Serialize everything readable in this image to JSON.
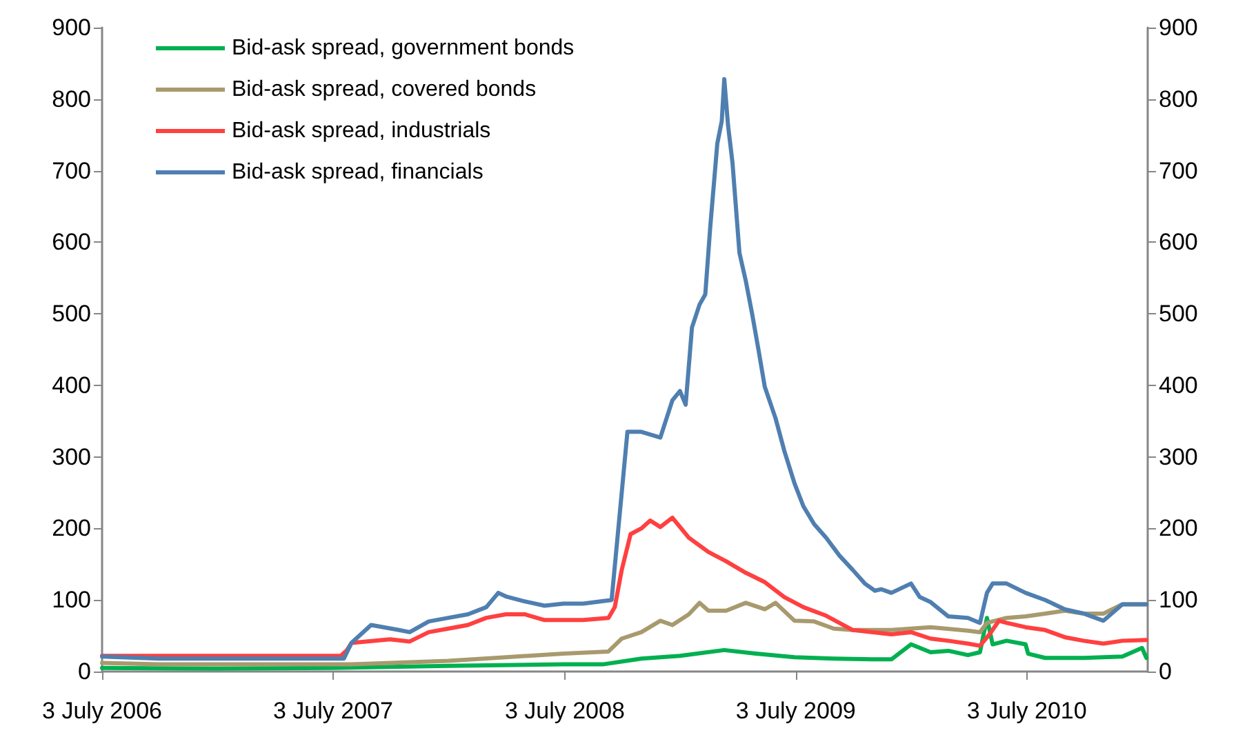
{
  "chart_data": {
    "type": "line",
    "xlim": [
      "2006-07-03",
      "2011-01-10"
    ],
    "xticks": [
      {
        "value": "2006-07-03",
        "label": "3 July 2006"
      },
      {
        "value": "2007-07-03",
        "label": "3 July 2007"
      },
      {
        "value": "2008-07-03",
        "label": "3 July 2008"
      },
      {
        "value": "2009-07-03",
        "label": "3 July 2009"
      },
      {
        "value": "2010-07-03",
        "label": "3 July 2010"
      }
    ],
    "ylim": [
      0,
      900
    ],
    "yticks": [
      0,
      100,
      200,
      300,
      400,
      500,
      600,
      700,
      800,
      900
    ],
    "y2lim": [
      0,
      900
    ],
    "y2ticks": [
      0,
      100,
      200,
      300,
      400,
      500,
      600,
      700,
      800,
      900
    ],
    "grid": false,
    "legend": "top left",
    "marker": "none",
    "line_style": "solid",
    "series": [
      {
        "name": "Bid-ask spread, government bonds",
        "color": "#00b050",
        "x": [
          "2006-07-03",
          "2007-01-01",
          "2007-07-01",
          "2008-01-01",
          "2008-07-01",
          "2008-09-01",
          "2008-11-01",
          "2009-01-01",
          "2009-03-12",
          "2009-05-01",
          "2009-07-01",
          "2009-09-01",
          "2009-11-01",
          "2009-12-01",
          "2010-01-01",
          "2010-02-01",
          "2010-03-01",
          "2010-04-01",
          "2010-04-20",
          "2010-05-01",
          "2010-05-10",
          "2010-06-01",
          "2010-07-01",
          "2010-07-05",
          "2010-08-01",
          "2010-10-01",
          "2010-12-01",
          "2011-01-01",
          "2011-01-08"
        ],
        "values": [
          5,
          4,
          5,
          8,
          10,
          10,
          18,
          22,
          30,
          25,
          20,
          18,
          17,
          17,
          38,
          27,
          29,
          23,
          27,
          75,
          38,
          43,
          38,
          25,
          19,
          19,
          21,
          33,
          19
        ]
      },
      {
        "name": "Bid-ask spread, covered bonds",
        "color": "#a89a6e",
        "x": [
          "2006-07-03",
          "2006-10-01",
          "2007-08-01",
          "2008-01-01",
          "2008-04-01",
          "2008-07-01",
          "2008-09-10",
          "2008-10-01",
          "2008-11-01",
          "2008-12-01",
          "2008-12-20",
          "2009-01-15",
          "2009-02-01",
          "2009-02-15",
          "2009-03-15",
          "2009-04-15",
          "2009-05-15",
          "2009-06-01",
          "2009-07-01",
          "2009-08-01",
          "2009-09-01",
          "2009-10-01",
          "2009-12-01",
          "2010-02-01",
          "2010-04-01",
          "2010-04-20",
          "2010-05-01",
          "2010-06-01",
          "2010-07-01",
          "2010-08-01",
          "2010-09-01",
          "2010-10-01",
          "2010-11-01",
          "2010-12-01",
          "2011-01-08"
        ],
        "values": [
          12,
          10,
          10,
          15,
          20,
          25,
          28,
          46,
          55,
          71,
          65,
          80,
          96,
          85,
          85,
          96,
          87,
          96,
          71,
          70,
          60,
          58,
          58,
          62,
          57,
          55,
          68,
          75,
          77,
          81,
          85,
          81,
          81,
          94,
          94
        ]
      },
      {
        "name": "Bid-ask spread, industrials",
        "color": "#ff4040",
        "x": [
          "2006-07-03",
          "2007-07-15",
          "2007-07-25",
          "2007-08-01",
          "2007-10-01",
          "2007-11-01",
          "2007-12-01",
          "2008-01-01",
          "2008-02-01",
          "2008-03-01",
          "2008-04-01",
          "2008-05-01",
          "2008-06-01",
          "2008-08-01",
          "2008-09-10",
          "2008-09-20",
          "2008-10-01",
          "2008-10-15",
          "2008-11-01",
          "2008-11-15",
          "2008-12-01",
          "2008-12-20",
          "2009-01-15",
          "2009-02-15",
          "2009-03-15",
          "2009-04-15",
          "2009-05-15",
          "2009-06-15",
          "2009-07-15",
          "2009-08-20",
          "2009-10-01",
          "2009-12-01",
          "2010-01-01",
          "2010-02-01",
          "2010-03-01",
          "2010-04-01",
          "2010-04-20",
          "2010-05-05",
          "2010-05-20",
          "2010-06-01",
          "2010-07-01",
          "2010-08-01",
          "2010-09-01",
          "2010-10-01",
          "2010-11-01",
          "2010-12-01",
          "2011-01-08"
        ],
        "values": [
          22,
          22,
          30,
          40,
          45,
          42,
          55,
          60,
          65,
          75,
          80,
          80,
          72,
          72,
          75,
          90,
          142,
          192,
          200,
          211,
          202,
          215,
          187,
          167,
          154,
          138,
          125,
          104,
          90,
          78,
          58,
          52,
          55,
          46,
          43,
          39,
          36,
          52,
          71,
          68,
          62,
          58,
          48,
          43,
          39,
          43,
          44
        ]
      },
      {
        "name": "Bid-ask spread, financials",
        "color": "#4f7fb0",
        "x": [
          "2006-07-03",
          "2006-10-01",
          "2007-07-20",
          "2007-08-01",
          "2007-09-01",
          "2007-10-15",
          "2007-11-01",
          "2007-12-01",
          "2008-01-01",
          "2008-02-01",
          "2008-03-01",
          "2008-03-20",
          "2008-04-01",
          "2008-05-01",
          "2008-06-01",
          "2008-07-01",
          "2008-08-01",
          "2008-09-15",
          "2008-10-01",
          "2008-10-10",
          "2008-11-01",
          "2008-12-01",
          "2008-12-20",
          "2009-01-01",
          "2009-01-10",
          "2009-01-20",
          "2009-02-01",
          "2009-02-10",
          "2009-02-18",
          "2009-03-01",
          "2009-03-08",
          "2009-03-12",
          "2009-03-18",
          "2009-03-25",
          "2009-04-05",
          "2009-04-15",
          "2009-04-25",
          "2009-05-05",
          "2009-05-15",
          "2009-06-01",
          "2009-06-15",
          "2009-07-01",
          "2009-07-15",
          "2009-08-01",
          "2009-08-20",
          "2009-09-10",
          "2009-10-01",
          "2009-10-20",
          "2009-11-05",
          "2009-11-15",
          "2009-12-01",
          "2010-01-01",
          "2010-01-15",
          "2010-02-01",
          "2010-03-01",
          "2010-04-01",
          "2010-04-20",
          "2010-05-01",
          "2010-05-10",
          "2010-06-01",
          "2010-07-01",
          "2010-08-01",
          "2010-09-01",
          "2010-10-01",
          "2010-11-01",
          "2010-12-01",
          "2011-01-08"
        ],
        "values": [
          21,
          18,
          18,
          40,
          65,
          58,
          55,
          70,
          75,
          80,
          90,
          110,
          105,
          98,
          92,
          95,
          95,
          100,
          250,
          335,
          335,
          327,
          379,
          392,
          373,
          481,
          513,
          527,
          623,
          738,
          769,
          828,
          763,
          711,
          585,
          546,
          500,
          450,
          398,
          354,
          308,
          263,
          231,
          206,
          187,
          162,
          142,
          123,
          113,
          115,
          110,
          123,
          104,
          97,
          77,
          75,
          68,
          110,
          123,
          123,
          110,
          100,
          87,
          81,
          71,
          94,
          94
        ]
      }
    ]
  }
}
